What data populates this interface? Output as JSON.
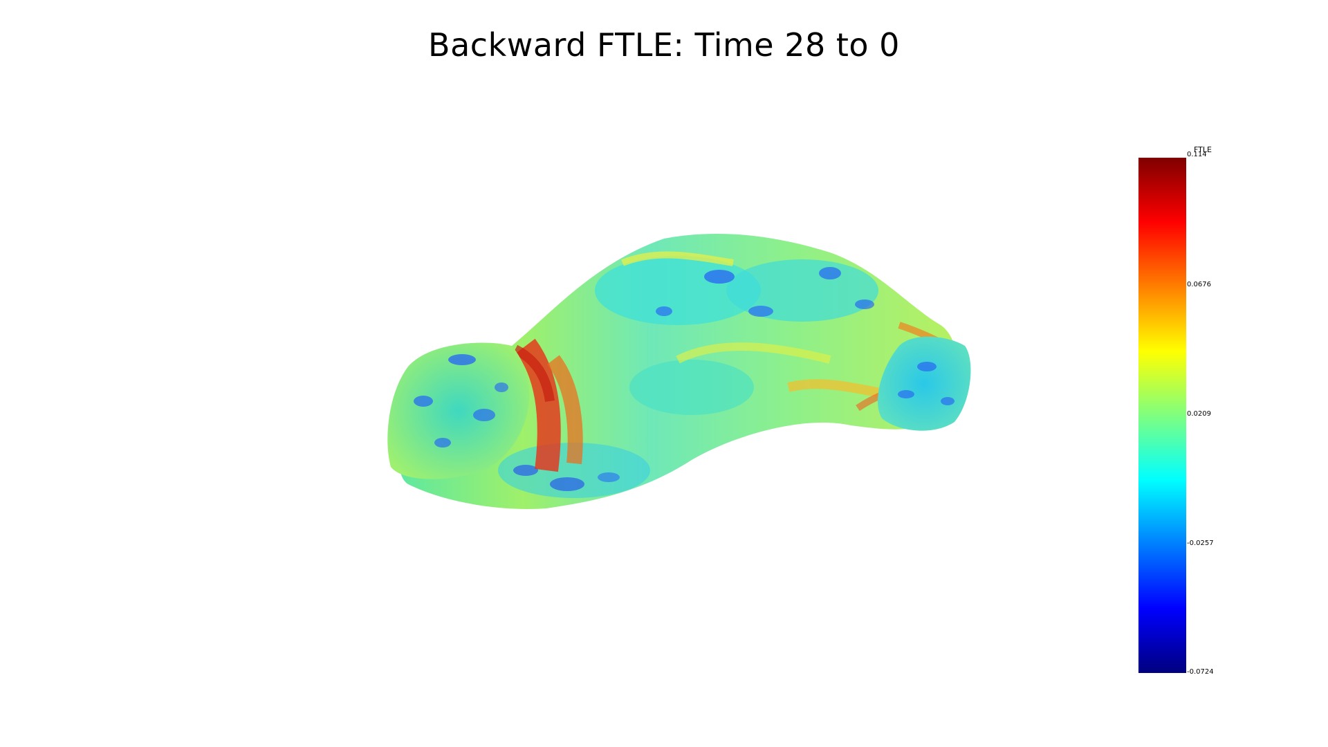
{
  "title": "Backward FTLE: Time 28 to 0",
  "colorbar": {
    "title": "FTLE",
    "ticks": [
      "0.114",
      "0.0676",
      "0.0209",
      "-0.0257",
      "-0.0724"
    ],
    "range": [
      -0.0724,
      0.114
    ],
    "colormap": "jet",
    "colors": [
      "#7f0000",
      "#ff0000",
      "#ff7f00",
      "#ffff00",
      "#7fff7f",
      "#00ffff",
      "#007fff",
      "#0000ff",
      "#00007f"
    ]
  }
}
